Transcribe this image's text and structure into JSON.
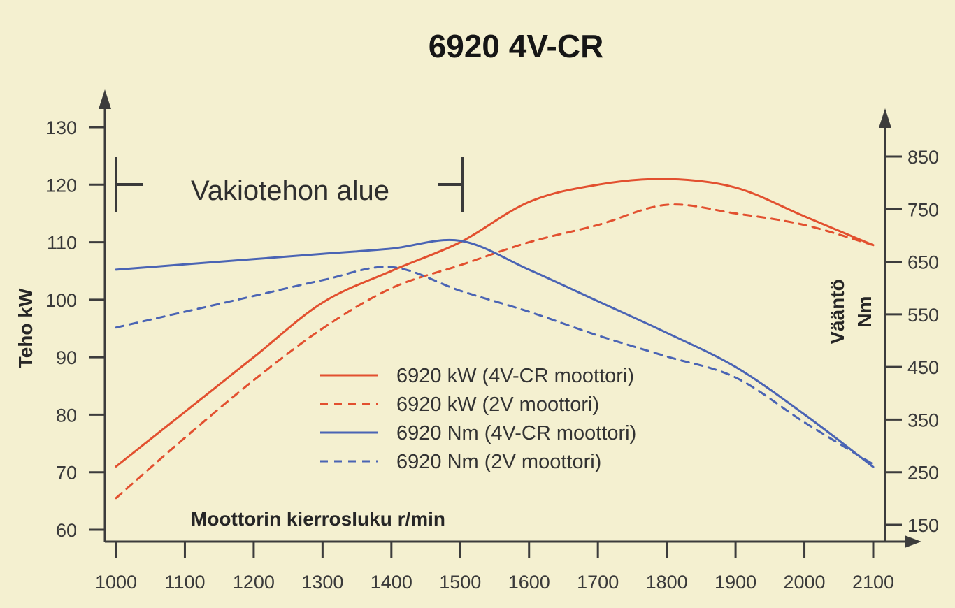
{
  "chart_data": {
    "type": "line",
    "title": "6920 4V-CR",
    "xlabel": "Moottorin kierrosluku r/min",
    "ylabel_left": "Teho kW",
    "ylabel_right": [
      "Vääntö",
      "Nm"
    ],
    "xlim": [
      1000,
      2100
    ],
    "ylim_left": [
      60,
      130
    ],
    "ylim_right": [
      150,
      850
    ],
    "x_ticks": [
      "1000",
      "1100",
      "1200",
      "1300",
      "1400",
      "1500",
      "1600",
      "1700",
      "1800",
      "1900",
      "2000",
      "2100"
    ],
    "y_ticks_left": [
      "60",
      "70",
      "80",
      "90",
      "100",
      "110",
      "120",
      "130"
    ],
    "y_ticks_right": [
      "150",
      "250",
      "350",
      "450",
      "550",
      "650",
      "750",
      "850"
    ],
    "annotation": "Vakiotehon alue",
    "annotation_range": [
      1000,
      1500
    ],
    "grid": false,
    "legend_position": "center",
    "colors": {
      "background": "#f4f0d0",
      "red": "#e2502f",
      "blue": "#4a64b4",
      "axis": "#3c3c3c"
    },
    "series": [
      {
        "name": "6920 kW (4V-CR moottori)",
        "axis": "left",
        "color": "#e2502f",
        "dash": "solid",
        "x": [
          1000,
          1100,
          1200,
          1300,
          1400,
          1500,
          1600,
          1700,
          1800,
          1900,
          2000,
          2100
        ],
        "values": [
          71,
          80.5,
          90,
          99.5,
          105,
          110,
          117,
          120,
          121,
          119.5,
          114.5,
          109.5
        ]
      },
      {
        "name": "6920 kW (2V moottori)",
        "axis": "left",
        "color": "#e2502f",
        "dash": "dashed",
        "x": [
          1000,
          1100,
          1200,
          1300,
          1400,
          1500,
          1600,
          1700,
          1800,
          1900,
          2000,
          2100
        ],
        "values": [
          65.5,
          76,
          86,
          95,
          102,
          106,
          110,
          113,
          116.5,
          115,
          113,
          109.5
        ]
      },
      {
        "name": "6920 Nm (4V-CR moottori)",
        "axis": "right",
        "color": "#4a64b4",
        "dash": "solid",
        "x": [
          1000,
          1100,
          1200,
          1300,
          1400,
          1500,
          1600,
          1700,
          1800,
          1900,
          2000,
          2100
        ],
        "values": [
          635,
          645,
          655,
          665,
          675,
          690,
          635,
          575,
          515,
          450,
          360,
          260
        ]
      },
      {
        "name": "6920 Nm (2V moottori)",
        "axis": "right",
        "color": "#4a64b4",
        "dash": "dashed",
        "x": [
          1000,
          1100,
          1200,
          1300,
          1400,
          1500,
          1600,
          1700,
          1800,
          1900,
          2000,
          2100
        ],
        "values": [
          525,
          555,
          585,
          615,
          640,
          595,
          555,
          510,
          470,
          430,
          345,
          265
        ]
      }
    ]
  }
}
